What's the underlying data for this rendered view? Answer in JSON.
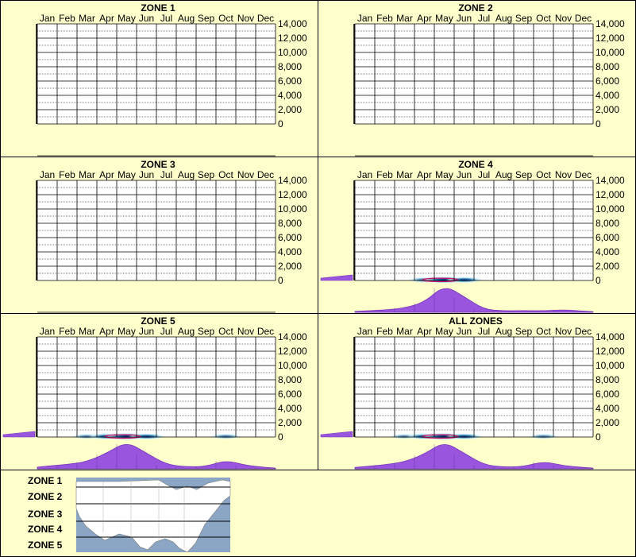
{
  "colors": {
    "background": "#ffffcc",
    "grid": "#000000",
    "density_fill": "#9955dd",
    "density_stroke": "#7733bb",
    "heat_low": "#c8ecf6",
    "heat_mid": "#1a6ea8",
    "heat_high": "#0d1a6e",
    "heat_peak": "#cc1166",
    "map_water": "#8aa6c4",
    "map_land": "#ffffff"
  },
  "months": [
    "Jan",
    "Feb",
    "Mar",
    "Apr",
    "May",
    "Jun",
    "Jul",
    "Aug",
    "Sep",
    "Oct",
    "Nov",
    "Dec"
  ],
  "y_ticks": [
    "14,000",
    "12,000",
    "10,000",
    "8,000",
    "6,000",
    "4,000",
    "2,000",
    "0"
  ],
  "chart_data": [
    {
      "type": "heatmap",
      "title": "ZONE 1",
      "ylim": [
        0,
        14000
      ],
      "has_data": false
    },
    {
      "type": "heatmap",
      "title": "ZONE 2",
      "ylim": [
        0,
        14000
      ],
      "has_data": false
    },
    {
      "type": "heatmap",
      "title": "ZONE 3",
      "ylim": [
        0,
        14000
      ],
      "has_data": false
    },
    {
      "type": "heatmap",
      "title": "ZONE 4",
      "ylim": [
        0,
        14000
      ],
      "has_data": true,
      "elevation_band": [
        0,
        300
      ],
      "month_density": [
        0.05,
        0.08,
        0.15,
        0.35,
        0.95,
        0.55,
        0.1,
        0.05,
        0.06,
        0.05,
        0.09,
        0.04
      ],
      "elev_density": [
        0.9,
        1.0
      ]
    },
    {
      "type": "heatmap",
      "title": "ZONE 5",
      "ylim": [
        0,
        14000
      ],
      "has_data": true,
      "elevation_band": [
        0,
        300
      ],
      "month_density": [
        0.1,
        0.15,
        0.25,
        0.55,
        0.95,
        0.55,
        0.15,
        0.07,
        0.08,
        0.3,
        0.12,
        0.05
      ],
      "elev_density": [
        0.9,
        1.0
      ]
    },
    {
      "type": "heatmap",
      "title": "ALL ZONES",
      "ylim": [
        0,
        14000
      ],
      "has_data": true,
      "elevation_band": [
        0,
        300
      ],
      "month_density": [
        0.08,
        0.14,
        0.24,
        0.52,
        0.95,
        0.55,
        0.14,
        0.06,
        0.08,
        0.26,
        0.11,
        0.05
      ],
      "elev_density": [
        0.9,
        1.0
      ]
    }
  ],
  "legend": {
    "zones": [
      "ZONE 1",
      "ZONE 2",
      "ZONE 3",
      "ZONE 4",
      "ZONE 5"
    ]
  }
}
